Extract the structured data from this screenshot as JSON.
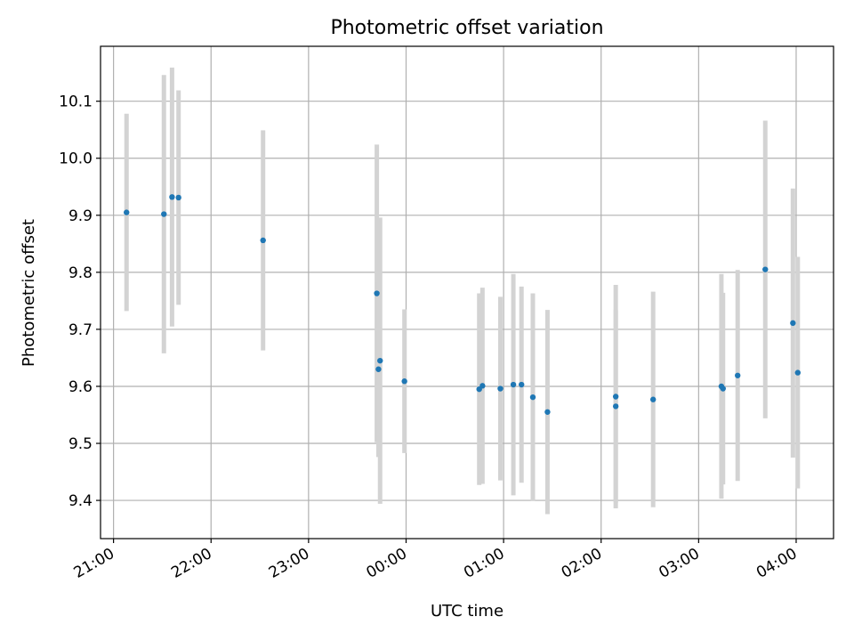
{
  "chart_data": {
    "type": "scatter",
    "title": "Photometric offset variation",
    "xlabel": "UTC time",
    "ylabel": "Photometric offset",
    "grid": true,
    "xlim": [
      "20:52",
      "28:23"
    ],
    "ylim": [
      9.333,
      10.1963
    ],
    "x_ticks": [
      {
        "t": "21:00",
        "label": "21:00"
      },
      {
        "t": "22:00",
        "label": "22:00"
      },
      {
        "t": "23:00",
        "label": "23:00"
      },
      {
        "t": "24:00",
        "label": "00:00"
      },
      {
        "t": "25:00",
        "label": "01:00"
      },
      {
        "t": "26:00",
        "label": "02:00"
      },
      {
        "t": "27:00",
        "label": "03:00"
      },
      {
        "t": "28:00",
        "label": "04:00"
      }
    ],
    "y_ticks": [
      9.4,
      9.5,
      9.6,
      9.7,
      9.8,
      9.9,
      10.0,
      10.1
    ],
    "y_tick_labels": [
      "9.4",
      "9.5",
      "9.6",
      "9.7",
      "9.8",
      "9.9",
      "10.0",
      "10.1"
    ],
    "marker_color": "#1f77b4",
    "errorbar_color": "#d3d3d3",
    "points": [
      {
        "t": "21:08",
        "y": 9.905,
        "err": 0.173
      },
      {
        "t": "21:31",
        "y": 9.902,
        "err": 0.244
      },
      {
        "t": "21:36",
        "y": 9.932,
        "err": 0.227
      },
      {
        "t": "21:40",
        "y": 9.931,
        "err": 0.188
      },
      {
        "t": "22:32",
        "y": 9.856,
        "err": 0.193
      },
      {
        "t": "23:42",
        "y": 9.763,
        "err": 0.261
      },
      {
        "t": "23:43",
        "y": 9.63,
        "err": 0.154
      },
      {
        "t": "23:44",
        "y": 9.645,
        "err": 0.251
      },
      {
        "t": "23:59",
        "y": 9.609,
        "err": 0.126
      },
      {
        "t": "24:45",
        "y": 9.595,
        "err": 0.168
      },
      {
        "t": "24:47",
        "y": 9.601,
        "err": 0.172
      },
      {
        "t": "24:58",
        "y": 9.596,
        "err": 0.161
      },
      {
        "t": "25:06",
        "y": 9.603,
        "err": 0.194
      },
      {
        "t": "25:11",
        "y": 9.603,
        "err": 0.172
      },
      {
        "t": "25:18",
        "y": 9.581,
        "err": 0.182
      },
      {
        "t": "25:27",
        "y": 9.555,
        "err": 0.179
      },
      {
        "t": "26:09",
        "y": 9.565,
        "err": 0.169
      },
      {
        "t": "26:09",
        "y": 9.582,
        "err": 0.196
      },
      {
        "t": "26:32",
        "y": 9.577,
        "err": 0.189
      },
      {
        "t": "27:14",
        "y": 9.6,
        "err": 0.197
      },
      {
        "t": "27:15",
        "y": 9.596,
        "err": 0.168
      },
      {
        "t": "27:24",
        "y": 9.619,
        "err": 0.185
      },
      {
        "t": "27:41",
        "y": 9.805,
        "err": 0.261
      },
      {
        "t": "27:58",
        "y": 9.711,
        "err": 0.236
      },
      {
        "t": "28:01",
        "y": 9.624,
        "err": 0.203
      }
    ]
  }
}
